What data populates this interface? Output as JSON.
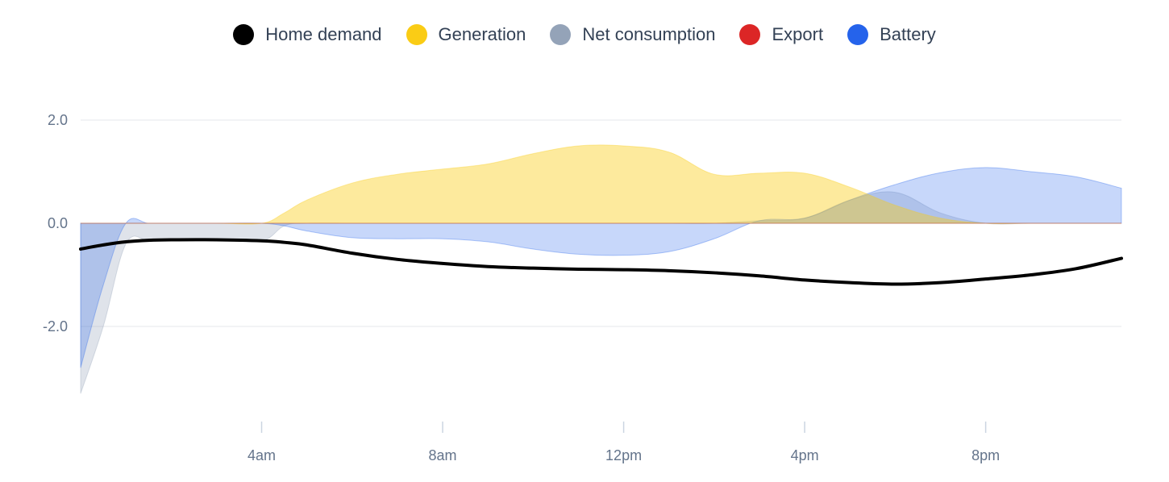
{
  "legend": [
    {
      "label": "Home demand",
      "color": "#000000"
    },
    {
      "label": "Generation",
      "color": "#facc15"
    },
    {
      "label": "Net consumption",
      "color": "#94a3b8"
    },
    {
      "label": "Export",
      "color": "#dc2626"
    },
    {
      "label": "Battery",
      "color": "#2563eb"
    }
  ],
  "chart_data": {
    "type": "area",
    "title": "",
    "xlabel": "",
    "ylabel": "",
    "xlim": [
      0,
      23
    ],
    "ylim": [
      -3.6,
      2.8
    ],
    "x_ticks": [
      {
        "x": 4,
        "label": "4am"
      },
      {
        "x": 8,
        "label": "8am"
      },
      {
        "x": 12,
        "label": "12pm"
      },
      {
        "x": 16,
        "label": "4pm"
      },
      {
        "x": 20,
        "label": "8pm"
      }
    ],
    "y_ticks": [
      {
        "y": 2.0,
        "label": "2.0"
      },
      {
        "y": 0.0,
        "label": "0.0"
      },
      {
        "y": -2.0,
        "label": "-2.0"
      }
    ],
    "grid": true,
    "legend_position": "top",
    "x": [
      0,
      0.5,
      1,
      1.5,
      2,
      3,
      4,
      4.5,
      5,
      6,
      7,
      8,
      9,
      10,
      11,
      12,
      13,
      14,
      15,
      16,
      17,
      18,
      19,
      20,
      21,
      22,
      23
    ],
    "series": [
      {
        "name": "Home demand",
        "color": "#000000",
        "kind": "line",
        "values": [
          -0.5,
          -0.42,
          -0.36,
          -0.33,
          -0.32,
          -0.32,
          -0.34,
          -0.37,
          -0.42,
          -0.58,
          -0.7,
          -0.78,
          -0.84,
          -0.87,
          -0.89,
          -0.9,
          -0.92,
          -0.96,
          -1.02,
          -1.1,
          -1.15,
          -1.18,
          -1.15,
          -1.08,
          -1.0,
          -0.88,
          -0.68
        ]
      },
      {
        "name": "Generation",
        "color": "#facc15",
        "kind": "area",
        "values": [
          0,
          0,
          0,
          0,
          0,
          0,
          0,
          0.2,
          0.45,
          0.78,
          0.95,
          1.05,
          1.15,
          1.35,
          1.5,
          1.5,
          1.38,
          0.95,
          0.97,
          0.97,
          0.7,
          0.35,
          0.1,
          0,
          0,
          0,
          0
        ]
      },
      {
        "name": "Net consumption",
        "color": "#94a3b8",
        "kind": "area",
        "values": [
          -3.3,
          -2.0,
          -0.4,
          -0.33,
          -0.32,
          -0.32,
          -0.34,
          -0.05,
          0,
          0,
          0,
          0,
          0,
          0,
          0,
          0,
          0,
          0,
          0.05,
          0.1,
          0.45,
          0.6,
          0.2,
          0,
          0,
          0,
          0
        ]
      },
      {
        "name": "Export",
        "color": "#dc2626",
        "kind": "area",
        "values": [
          0,
          0,
          0,
          0,
          0,
          0,
          0,
          0,
          0,
          0,
          0,
          0,
          0,
          0,
          0,
          0,
          0,
          0,
          0,
          0,
          0,
          0,
          0,
          0,
          0,
          0,
          0
        ]
      },
      {
        "name": "Battery",
        "color": "#2563eb",
        "kind": "area",
        "values": [
          -2.8,
          -1.2,
          0,
          0,
          0,
          0,
          0,
          -0.05,
          -0.15,
          -0.28,
          -0.3,
          -0.3,
          -0.36,
          -0.5,
          -0.6,
          -0.62,
          -0.55,
          -0.3,
          0.05,
          0.1,
          0.45,
          0.75,
          0.98,
          1.08,
          1.0,
          0.9,
          0.68
        ]
      }
    ]
  }
}
